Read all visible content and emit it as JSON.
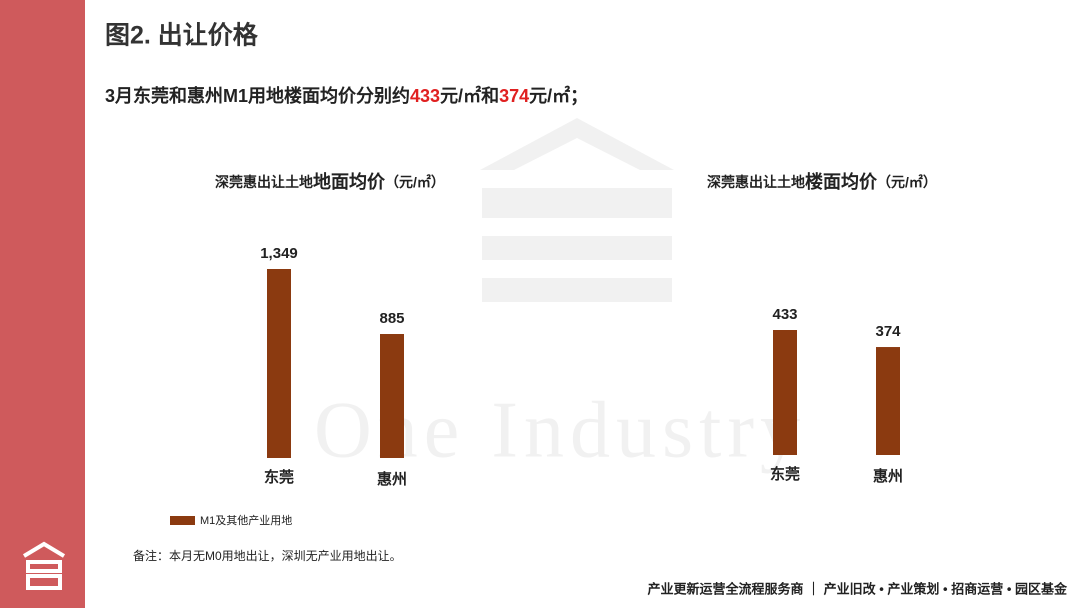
{
  "header": {
    "title": "图2. 出让价格",
    "subtitle": [
      "3月东莞和惠州M1用地楼面均价分别约",
      "433",
      "元/㎡和",
      "374",
      "元/㎡；"
    ]
  },
  "watermark": "One Industry",
  "chart_data": [
    {
      "type": "bar",
      "title": [
        "深莞惠出让土地",
        "地面均价",
        "（元/㎡）"
      ],
      "categories": [
        "东莞",
        "惠州"
      ],
      "series": [
        {
          "name": "M1及其他产业用地",
          "color": "#8b3a10",
          "values": [
            1349,
            885
          ],
          "value_labels": [
            "1,349",
            "885"
          ]
        }
      ]
    },
    {
      "type": "bar",
      "title": [
        "深莞惠出让土地",
        "楼面均价",
        "（元/㎡）"
      ],
      "categories": [
        "东莞",
        "惠州"
      ],
      "color": "#8b3a10",
      "values": [
        433,
        374
      ]
    }
  ],
  "note": "备注：本月无M0用地出让，深圳无产业用地出让。",
  "footer": "产业更新运营全流程服务商 ｜ 产业旧改 • 产业策划 • 招商运营 • 园区基金"
}
